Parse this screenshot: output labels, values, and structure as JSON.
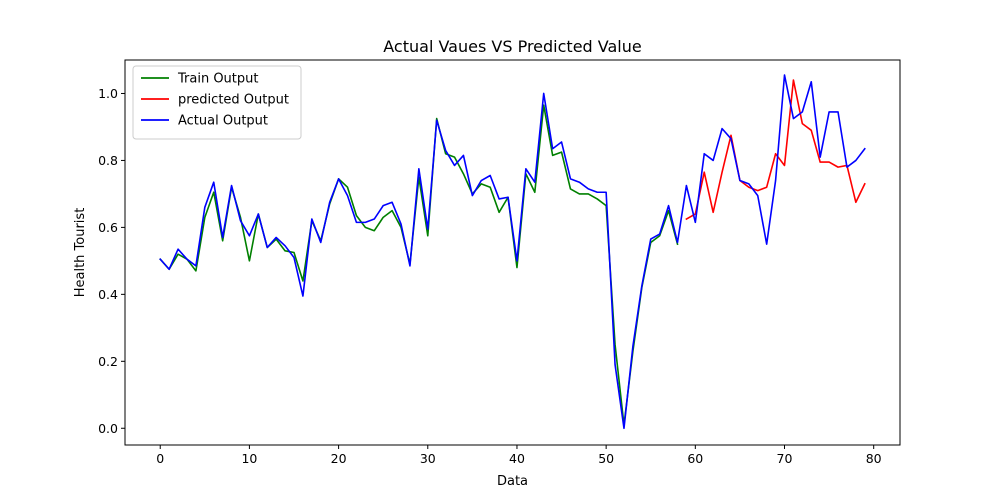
{
  "chart_data": {
    "type": "line",
    "title": "Actual Vaues VS Predicted Value",
    "xlabel": "Data",
    "ylabel": "Health Tourist",
    "xlim": [
      -3.95,
      82.95
    ],
    "ylim": [
      -0.05,
      1.1
    ],
    "xticks": [
      0,
      10,
      20,
      30,
      40,
      50,
      60,
      70,
      80
    ],
    "yticks": [
      0.0,
      0.2,
      0.4,
      0.6,
      0.8,
      1.0
    ],
    "yticklabels": [
      "0.0",
      "0.2",
      "0.4",
      "0.6",
      "0.8",
      "1.0"
    ],
    "grid": false,
    "legend_position": "upper-left",
    "series": [
      {
        "name": "Train Output",
        "color": "#008000",
        "x": [
          0,
          1,
          2,
          3,
          4,
          5,
          6,
          7,
          8,
          9,
          10,
          11,
          12,
          13,
          14,
          15,
          16,
          17,
          18,
          19,
          20,
          21,
          22,
          23,
          24,
          25,
          26,
          27,
          28,
          29,
          30,
          31,
          32,
          33,
          34,
          35,
          36,
          37,
          38,
          39,
          40,
          41,
          42,
          43,
          44,
          45,
          46,
          47,
          48,
          49,
          50,
          51,
          52,
          53,
          54,
          55,
          56,
          57,
          58
        ],
        "y": [
          0.505,
          0.475,
          0.52,
          0.505,
          0.47,
          0.63,
          0.705,
          0.56,
          0.72,
          0.63,
          0.5,
          0.64,
          0.54,
          0.565,
          0.53,
          0.525,
          0.44,
          0.62,
          0.56,
          0.67,
          0.745,
          0.72,
          0.635,
          0.6,
          0.59,
          0.63,
          0.65,
          0.6,
          0.49,
          0.75,
          0.575,
          0.925,
          0.82,
          0.81,
          0.76,
          0.7,
          0.73,
          0.72,
          0.645,
          0.69,
          0.48,
          0.76,
          0.705,
          0.965,
          0.815,
          0.825,
          0.715,
          0.7,
          0.7,
          0.685,
          0.665,
          0.25,
          0.01,
          0.23,
          0.42,
          0.555,
          0.575,
          0.65,
          0.55
        ]
      },
      {
        "name": "predicted Output",
        "color": "#ff0000",
        "x": [
          59,
          60,
          61,
          62,
          63,
          64,
          65,
          66,
          67,
          68,
          69,
          70,
          71,
          72,
          73,
          74,
          75,
          76,
          77,
          78,
          79
        ],
        "y": [
          0.625,
          0.64,
          0.765,
          0.645,
          0.765,
          0.875,
          0.74,
          0.72,
          0.71,
          0.72,
          0.82,
          0.785,
          1.04,
          0.91,
          0.89,
          0.795,
          0.795,
          0.78,
          0.785,
          0.675,
          0.73
        ]
      },
      {
        "name": "Actual Output",
        "color": "#0000ff",
        "x": [
          0,
          1,
          2,
          3,
          4,
          5,
          6,
          7,
          8,
          9,
          10,
          11,
          12,
          13,
          14,
          15,
          16,
          17,
          18,
          19,
          20,
          21,
          22,
          23,
          24,
          25,
          26,
          27,
          28,
          29,
          30,
          31,
          32,
          33,
          34,
          35,
          36,
          37,
          38,
          39,
          40,
          41,
          42,
          43,
          44,
          45,
          46,
          47,
          48,
          49,
          50,
          51,
          52,
          53,
          54,
          55,
          56,
          57,
          58,
          59,
          60,
          61,
          62,
          63,
          64,
          65,
          66,
          67,
          68,
          69,
          70,
          71,
          72,
          73,
          74,
          75,
          76,
          77,
          78,
          79
        ],
        "y": [
          0.505,
          0.475,
          0.535,
          0.505,
          0.485,
          0.66,
          0.735,
          0.57,
          0.725,
          0.62,
          0.575,
          0.64,
          0.54,
          0.57,
          0.545,
          0.51,
          0.395,
          0.625,
          0.555,
          0.675,
          0.745,
          0.695,
          0.615,
          0.615,
          0.625,
          0.665,
          0.675,
          0.61,
          0.485,
          0.775,
          0.595,
          0.92,
          0.83,
          0.785,
          0.815,
          0.695,
          0.74,
          0.755,
          0.685,
          0.69,
          0.5,
          0.775,
          0.735,
          1.0,
          0.835,
          0.855,
          0.745,
          0.735,
          0.715,
          0.705,
          0.705,
          0.19,
          0.0,
          0.245,
          0.425,
          0.565,
          0.58,
          0.665,
          0.555,
          0.725,
          0.615,
          0.82,
          0.8,
          0.895,
          0.865,
          0.74,
          0.73,
          0.695,
          0.55,
          0.74,
          1.055,
          0.925,
          0.945,
          1.035,
          0.81,
          0.945,
          0.945,
          0.78,
          0.8,
          0.835
        ]
      }
    ]
  }
}
